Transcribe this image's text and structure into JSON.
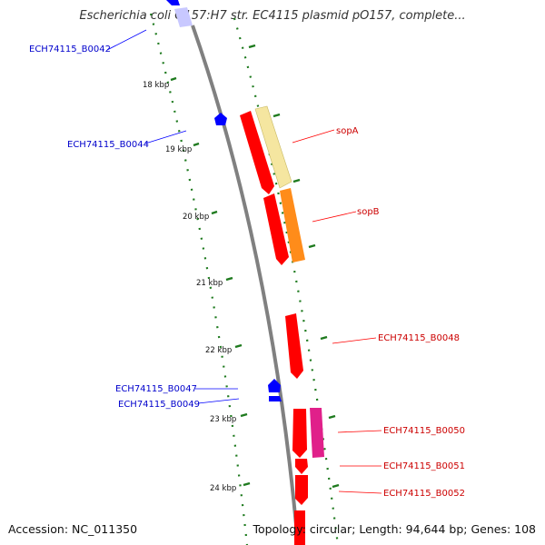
{
  "title": "Escherichia coli O157:H7 str. EC4115 plasmid pO157, complete...",
  "footer": {
    "accession": "Accession: NC_011350",
    "summary": "Topology: circular; Length: 94,644 bp; Genes: 108"
  },
  "ticks": [
    "18 kbp",
    "19 kbp",
    "20 kbp",
    "21 kbp",
    "22 kbp",
    "23 kbp",
    "24 kbp"
  ],
  "genes_left": [
    "ECH74115_B0042",
    "ECH74115_B0044",
    "ECH74115_B0047",
    "ECH74115_B0049"
  ],
  "genes_right": [
    "sopA",
    "sopB",
    "ECH74115_B0048",
    "ECH74115_B0050",
    "ECH74115_B0051",
    "ECH74115_B0052"
  ],
  "colors": {
    "backbone": "#808080",
    "forward_cds": "#ff0000",
    "reverse_cds": "#0000ff",
    "sopA_feature": "#f5e6a0",
    "sopB_feature": "#ff8c1a",
    "b0050_feature": "#e0208a",
    "gc_dots": "#1e7a1e"
  }
}
